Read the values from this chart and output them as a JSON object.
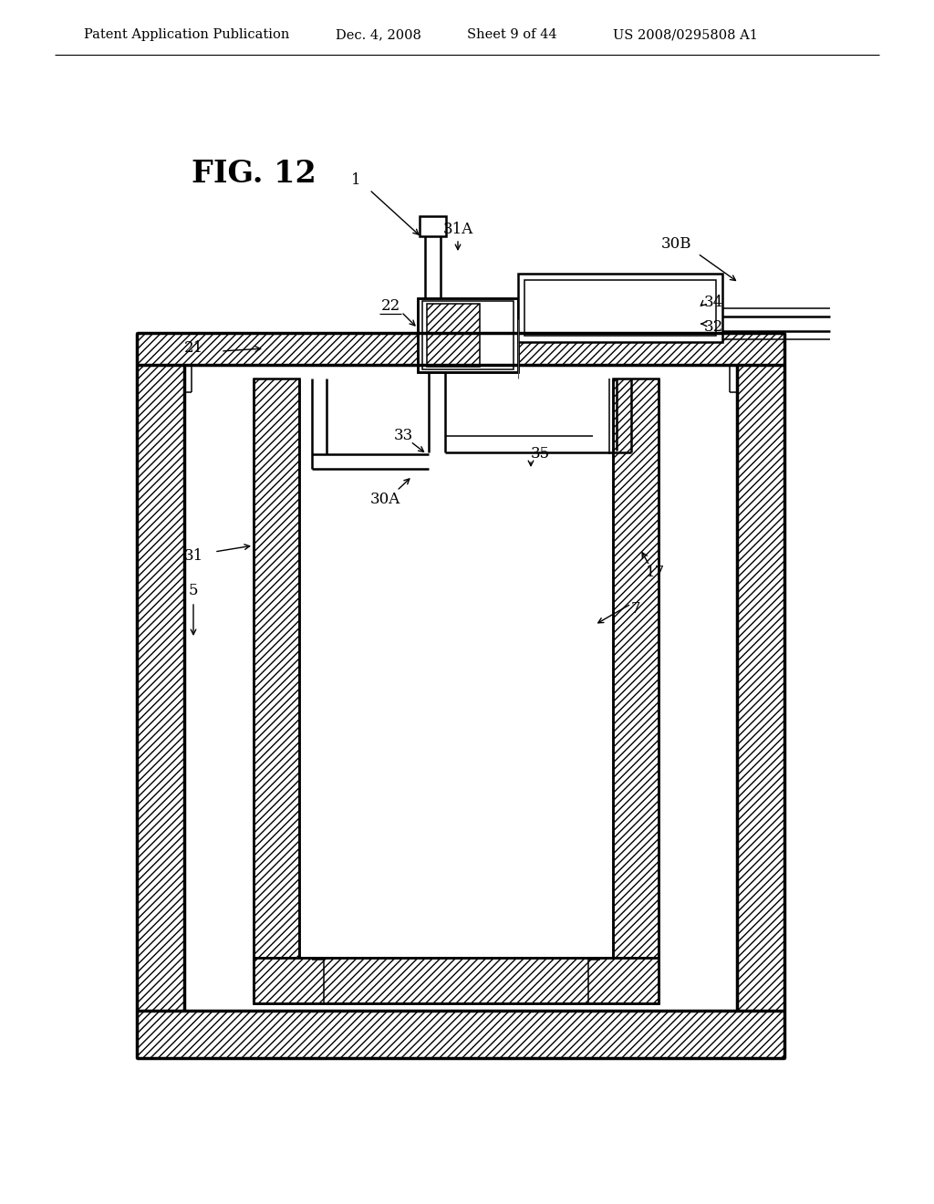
{
  "bg_color": "#ffffff",
  "line_color": "#000000",
  "header_text1": "Patent Application Publication",
  "header_text2": "Dec. 4, 2008",
  "header_text3": "Sheet 9 of 44",
  "header_text4": "US 2008/0295808 A1",
  "fig_label": "FIG. 12",
  "lw_thick": 2.5,
  "lw_med": 1.8,
  "lw_thin": 1.1,
  "lw_hair": 0.8,
  "hatch_density": "////",
  "label_fontsize": 12,
  "header_fontsize": 10.5,
  "fig_label_fontsize": 24
}
